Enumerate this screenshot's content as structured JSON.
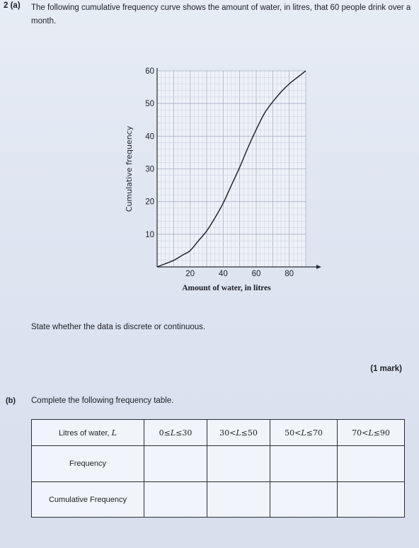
{
  "question": {
    "part_a_label": "2 (a)",
    "part_a_text": "The following cumulative frequency curve shows the amount of water, in litres, that 60 people drink over a month.",
    "prompt": "State whether the data is discrete or continuous.",
    "marks": "(1 mark)",
    "part_b_label": "(b)",
    "part_b_text": "Complete the following frequency table."
  },
  "table": {
    "header": {
      "label_text": "Litres of water, ",
      "label_var": "L",
      "ranges": [
        {
          "lo": "0",
          "op1": "≤",
          "var": "L",
          "op2": "≤",
          "hi": "30"
        },
        {
          "lo": "30",
          "op1": "<",
          "var": "L",
          "op2": "≤",
          "hi": "50"
        },
        {
          "lo": "50",
          "op1": "<",
          "var": "L",
          "op2": "≤",
          "hi": "70"
        },
        {
          "lo": "70",
          "op1": "<",
          "var": "L",
          "op2": "≤",
          "hi": "90"
        }
      ]
    },
    "rows": [
      "Frequency",
      "Cumulative Frequency"
    ]
  },
  "chart_data": {
    "type": "line",
    "title": "",
    "xlabel": "Amount of water, in litres",
    "ylabel": "Cumulative frequency",
    "xlim": [
      0,
      90
    ],
    "ylim": [
      0,
      60
    ],
    "xticks": [
      20,
      40,
      60,
      80
    ],
    "yticks": [
      10,
      20,
      30,
      40,
      50,
      60
    ],
    "grid": true,
    "series": [
      {
        "x": [
          0,
          5,
          10,
          15,
          20,
          25,
          30,
          35,
          40,
          45,
          50,
          55,
          60,
          65,
          70,
          75,
          80,
          85,
          90
        ],
        "y": [
          0,
          1,
          2,
          3.5,
          5,
          8,
          11,
          15,
          19.5,
          25,
          30.5,
          36.5,
          42,
          47,
          50.5,
          53.5,
          56,
          58,
          60
        ]
      }
    ]
  }
}
